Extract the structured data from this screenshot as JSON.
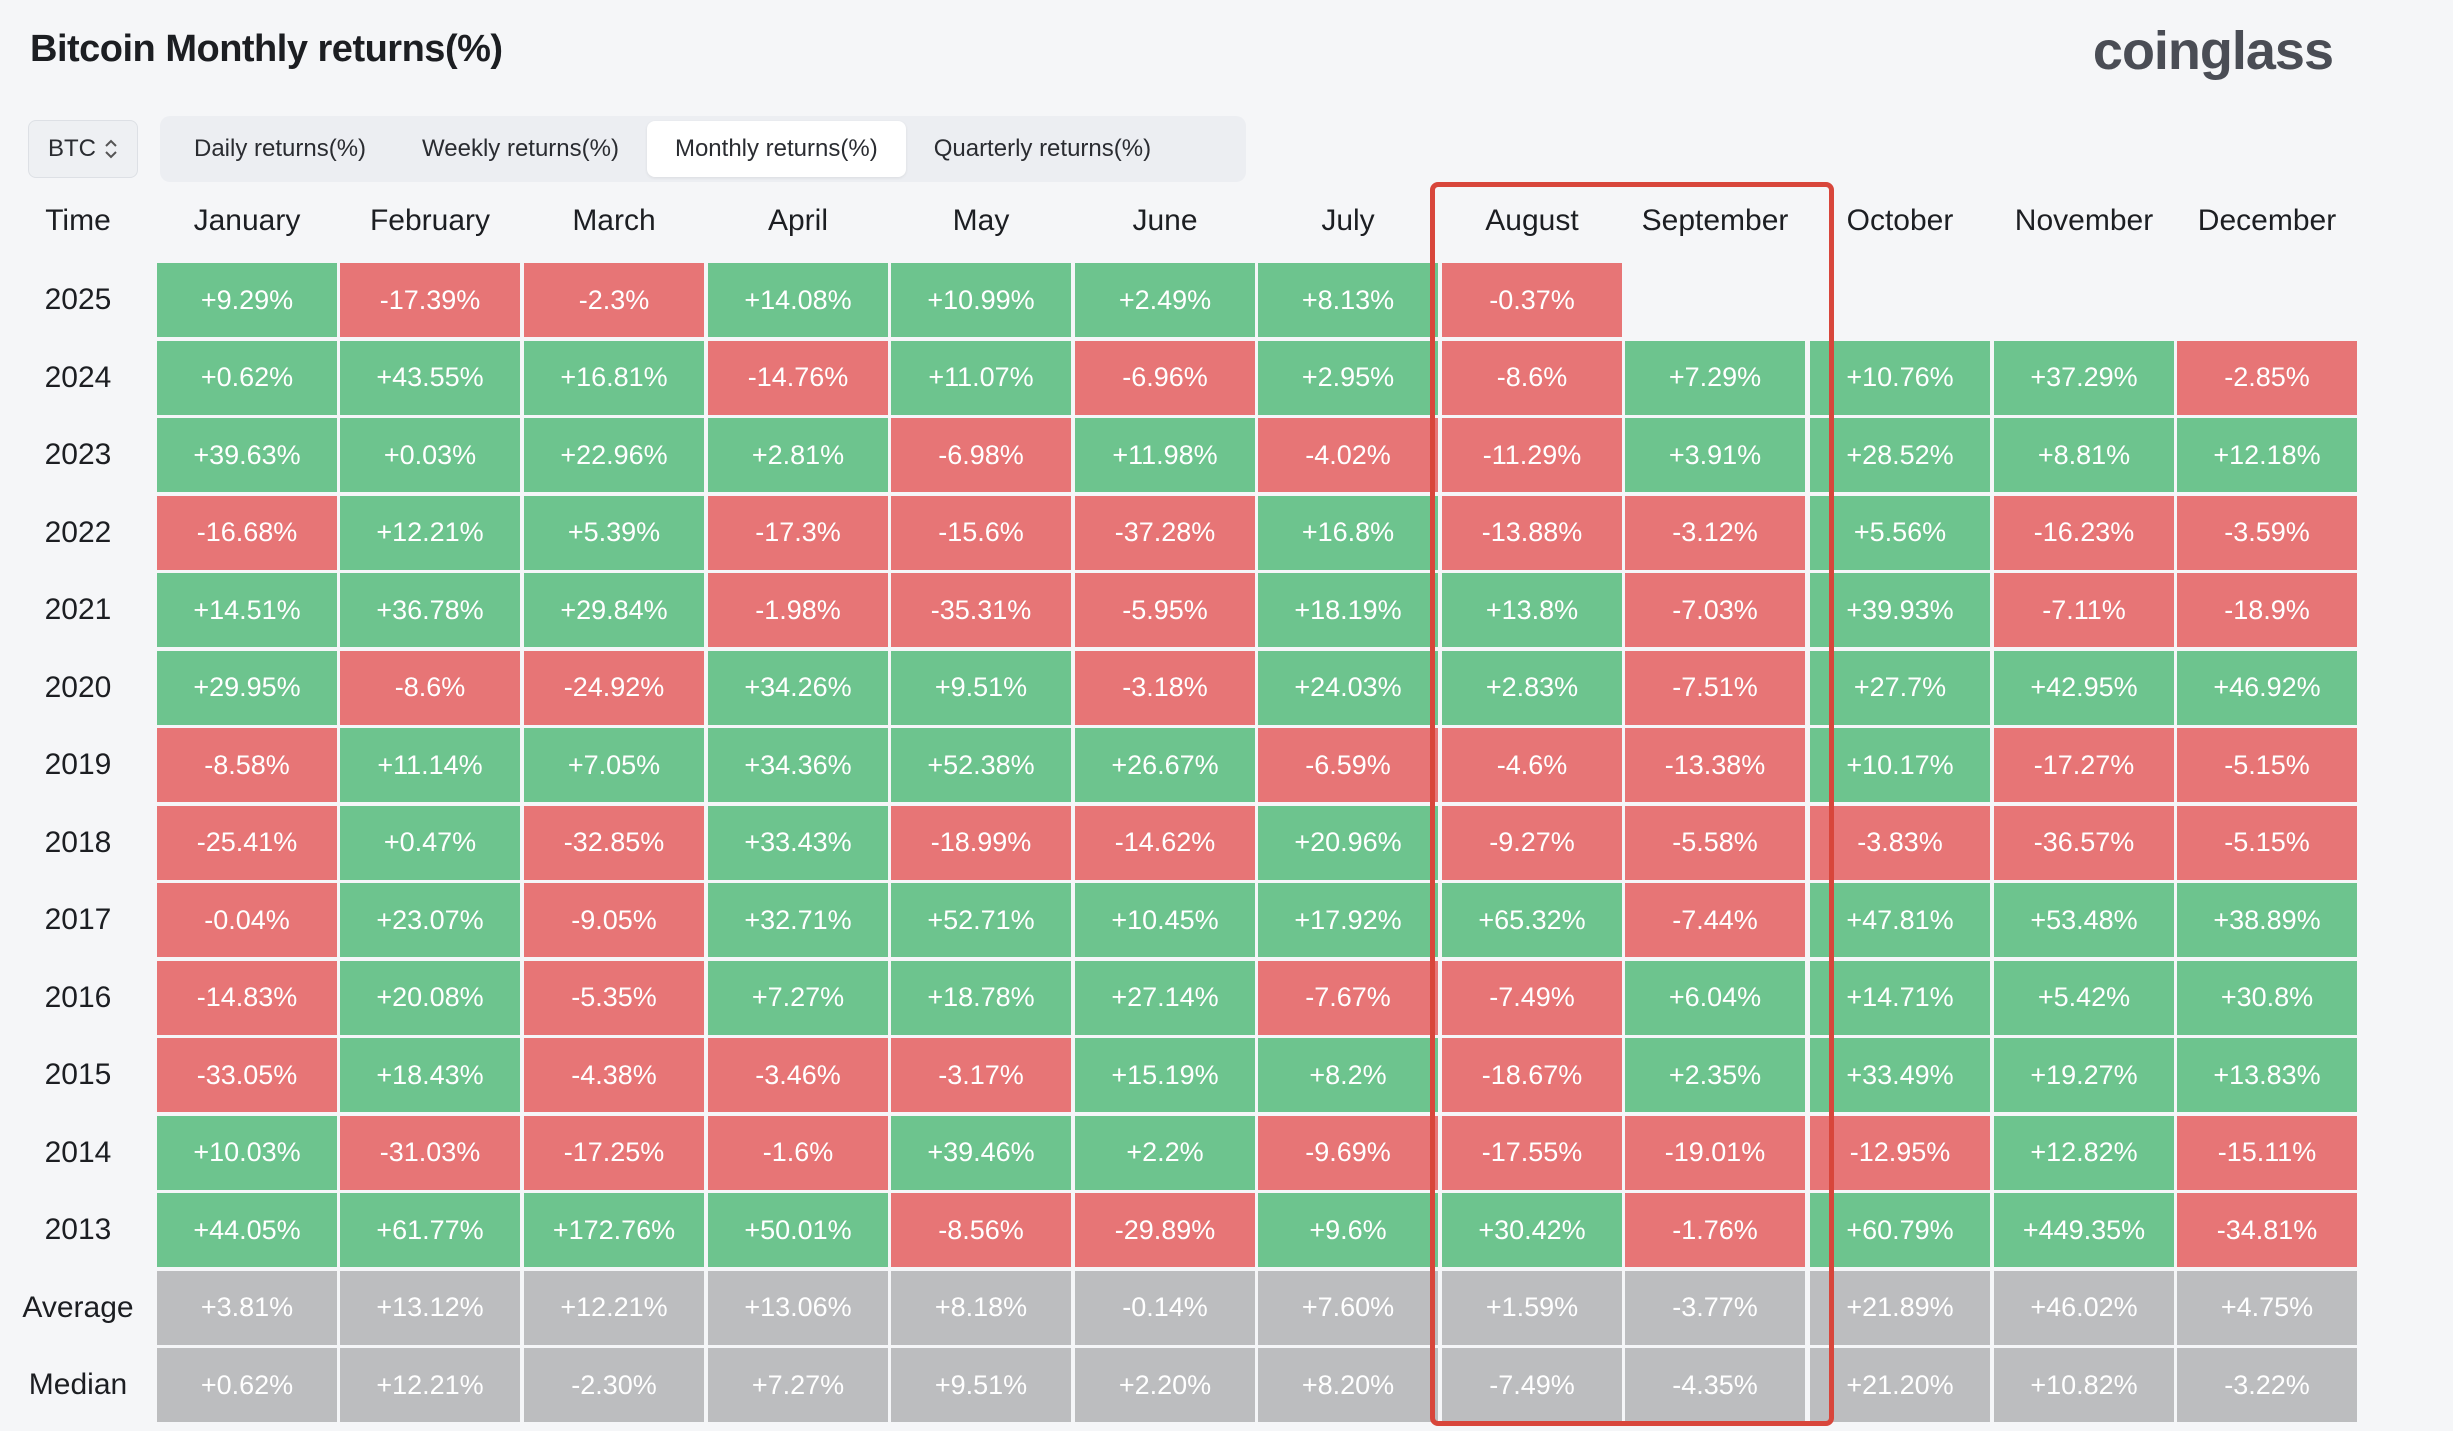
{
  "page_title": "Bitcoin Monthly returns(%)",
  "brand": "coinglass",
  "asset_selector": {
    "value": "BTC",
    "icon": "chevron-updown-icon"
  },
  "tabs": [
    {
      "label": "Daily returns(%)",
      "active": false
    },
    {
      "label": "Weekly returns(%)",
      "active": false
    },
    {
      "label": "Monthly returns(%)",
      "active": true
    },
    {
      "label": "Quarterly returns(%)",
      "active": false
    }
  ],
  "table": {
    "time_header": "Time",
    "months": [
      "January",
      "February",
      "March",
      "April",
      "May",
      "June",
      "July",
      "August",
      "September",
      "October",
      "November",
      "December"
    ],
    "highlighted_months": [
      "August",
      "September"
    ],
    "colors": {
      "positive": "#6dc48e",
      "negative": "#e77576",
      "summary": "#bcbdbf",
      "highlight": "#d8463b"
    },
    "rows": [
      {
        "label": "2025",
        "type": "year",
        "values": [
          "+9.29%",
          "-17.39%",
          "-2.3%",
          "+14.08%",
          "+10.99%",
          "+2.49%",
          "+8.13%",
          "-0.37%",
          "",
          "",
          "",
          ""
        ]
      },
      {
        "label": "2024",
        "type": "year",
        "values": [
          "+0.62%",
          "+43.55%",
          "+16.81%",
          "-14.76%",
          "+11.07%",
          "-6.96%",
          "+2.95%",
          "-8.6%",
          "+7.29%",
          "+10.76%",
          "+37.29%",
          "-2.85%"
        ]
      },
      {
        "label": "2023",
        "type": "year",
        "values": [
          "+39.63%",
          "+0.03%",
          "+22.96%",
          "+2.81%",
          "-6.98%",
          "+11.98%",
          "-4.02%",
          "-11.29%",
          "+3.91%",
          "+28.52%",
          "+8.81%",
          "+12.18%"
        ]
      },
      {
        "label": "2022",
        "type": "year",
        "values": [
          "-16.68%",
          "+12.21%",
          "+5.39%",
          "-17.3%",
          "-15.6%",
          "-37.28%",
          "+16.8%",
          "-13.88%",
          "-3.12%",
          "+5.56%",
          "-16.23%",
          "-3.59%"
        ]
      },
      {
        "label": "2021",
        "type": "year",
        "values": [
          "+14.51%",
          "+36.78%",
          "+29.84%",
          "-1.98%",
          "-35.31%",
          "-5.95%",
          "+18.19%",
          "+13.8%",
          "-7.03%",
          "+39.93%",
          "-7.11%",
          "-18.9%"
        ]
      },
      {
        "label": "2020",
        "type": "year",
        "values": [
          "+29.95%",
          "-8.6%",
          "-24.92%",
          "+34.26%",
          "+9.51%",
          "-3.18%",
          "+24.03%",
          "+2.83%",
          "-7.51%",
          "+27.7%",
          "+42.95%",
          "+46.92%"
        ]
      },
      {
        "label": "2019",
        "type": "year",
        "values": [
          "-8.58%",
          "+11.14%",
          "+7.05%",
          "+34.36%",
          "+52.38%",
          "+26.67%",
          "-6.59%",
          "-4.6%",
          "-13.38%",
          "+10.17%",
          "-17.27%",
          "-5.15%"
        ]
      },
      {
        "label": "2018",
        "type": "year",
        "values": [
          "-25.41%",
          "+0.47%",
          "-32.85%",
          "+33.43%",
          "-18.99%",
          "-14.62%",
          "+20.96%",
          "-9.27%",
          "-5.58%",
          "-3.83%",
          "-36.57%",
          "-5.15%"
        ]
      },
      {
        "label": "2017",
        "type": "year",
        "values": [
          "-0.04%",
          "+23.07%",
          "-9.05%",
          "+32.71%",
          "+52.71%",
          "+10.45%",
          "+17.92%",
          "+65.32%",
          "-7.44%",
          "+47.81%",
          "+53.48%",
          "+38.89%"
        ]
      },
      {
        "label": "2016",
        "type": "year",
        "values": [
          "-14.83%",
          "+20.08%",
          "-5.35%",
          "+7.27%",
          "+18.78%",
          "+27.14%",
          "-7.67%",
          "-7.49%",
          "+6.04%",
          "+14.71%",
          "+5.42%",
          "+30.8%"
        ]
      },
      {
        "label": "2015",
        "type": "year",
        "values": [
          "-33.05%",
          "+18.43%",
          "-4.38%",
          "-3.46%",
          "-3.17%",
          "+15.19%",
          "+8.2%",
          "-18.67%",
          "+2.35%",
          "+33.49%",
          "+19.27%",
          "+13.83%"
        ]
      },
      {
        "label": "2014",
        "type": "year",
        "values": [
          "+10.03%",
          "-31.03%",
          "-17.25%",
          "-1.6%",
          "+39.46%",
          "+2.2%",
          "-9.69%",
          "-17.55%",
          "-19.01%",
          "-12.95%",
          "+12.82%",
          "-15.11%"
        ]
      },
      {
        "label": "2013",
        "type": "year",
        "values": [
          "+44.05%",
          "+61.77%",
          "+172.76%",
          "+50.01%",
          "-8.56%",
          "-29.89%",
          "+9.6%",
          "+30.42%",
          "-1.76%",
          "+60.79%",
          "+449.35%",
          "-34.81%"
        ]
      },
      {
        "label": "Average",
        "type": "summary",
        "values": [
          "+3.81%",
          "+13.12%",
          "+12.21%",
          "+13.06%",
          "+8.18%",
          "-0.14%",
          "+7.60%",
          "+1.59%",
          "-3.77%",
          "+21.89%",
          "+46.02%",
          "+4.75%"
        ]
      },
      {
        "label": "Median",
        "type": "summary",
        "values": [
          "+0.62%",
          "+12.21%",
          "-2.30%",
          "+7.27%",
          "+9.51%",
          "+2.20%",
          "+8.20%",
          "-7.49%",
          "-4.35%",
          "+21.20%",
          "+10.82%",
          "-3.22%"
        ]
      }
    ]
  }
}
